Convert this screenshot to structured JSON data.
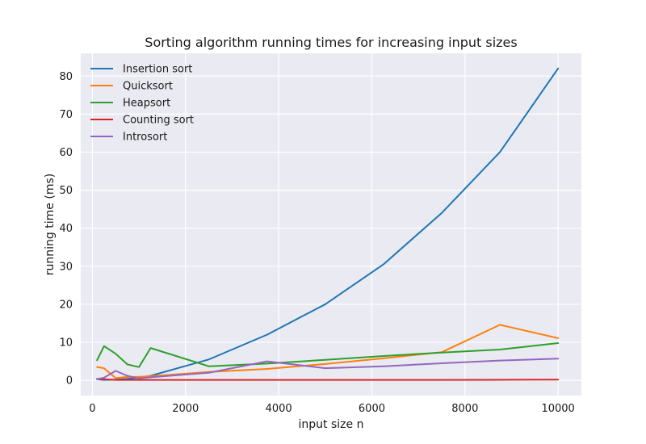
{
  "chart_data": {
    "type": "line",
    "title": "Sorting algorithm running times for increasing input sizes",
    "xlabel": "input size n",
    "ylabel": "running time (ms)",
    "xlim": [
      -250,
      10500
    ],
    "ylim": [
      -4,
      86
    ],
    "xticks": [
      0,
      2000,
      4000,
      6000,
      8000,
      10000
    ],
    "yticks": [
      0,
      10,
      20,
      30,
      40,
      50,
      60,
      70,
      80
    ],
    "grid": true,
    "legend_position": "upper-left",
    "series": [
      {
        "name": "Insertion sort",
        "color": "#1f77b4",
        "x": [
          100,
          250,
          500,
          750,
          1000,
          1250,
          2500,
          3750,
          5000,
          6250,
          7500,
          8750,
          10000
        ],
        "y": [
          0.3,
          0.1,
          0.2,
          0.4,
          0.7,
          1.2,
          5.5,
          12,
          20,
          30.5,
          44,
          60,
          82
        ]
      },
      {
        "name": "Quicksort",
        "color": "#ff7f0e",
        "x": [
          100,
          250,
          500,
          750,
          1000,
          1250,
          2500,
          3750,
          5000,
          6250,
          7500,
          8750,
          10000
        ],
        "y": [
          3.5,
          3.2,
          0.6,
          0.9,
          0.9,
          1.1,
          2.2,
          3.0,
          4.3,
          5.8,
          7.4,
          14.6,
          11.1
        ]
      },
      {
        "name": "Heapsort",
        "color": "#2ca02c",
        "x": [
          100,
          250,
          500,
          750,
          1000,
          1250,
          2500,
          3750,
          5000,
          6250,
          7500,
          8750,
          10000
        ],
        "y": [
          5.3,
          9.0,
          7.0,
          4.2,
          3.5,
          8.5,
          3.7,
          4.4,
          5.4,
          6.4,
          7.3,
          8.1,
          9.8
        ]
      },
      {
        "name": "Counting sort",
        "color": "#d62728",
        "x": [
          100,
          250,
          500,
          750,
          1000,
          1250,
          2500,
          3750,
          5000,
          6250,
          7500,
          8750,
          10000
        ],
        "y": [
          0.4,
          0.3,
          0.1,
          0.1,
          0.1,
          0.1,
          0.1,
          0.1,
          0.1,
          0.1,
          0.1,
          0.15,
          0.2
        ]
      },
      {
        "name": "Introsort",
        "color": "#9467bd",
        "x": [
          100,
          250,
          500,
          750,
          1000,
          1250,
          2500,
          3750,
          5000,
          6250,
          7500,
          8750,
          10000
        ],
        "y": [
          0.3,
          0.7,
          2.5,
          1.2,
          0.5,
          0.8,
          2.0,
          5.0,
          3.2,
          3.7,
          4.5,
          5.2,
          5.7
        ]
      }
    ]
  }
}
